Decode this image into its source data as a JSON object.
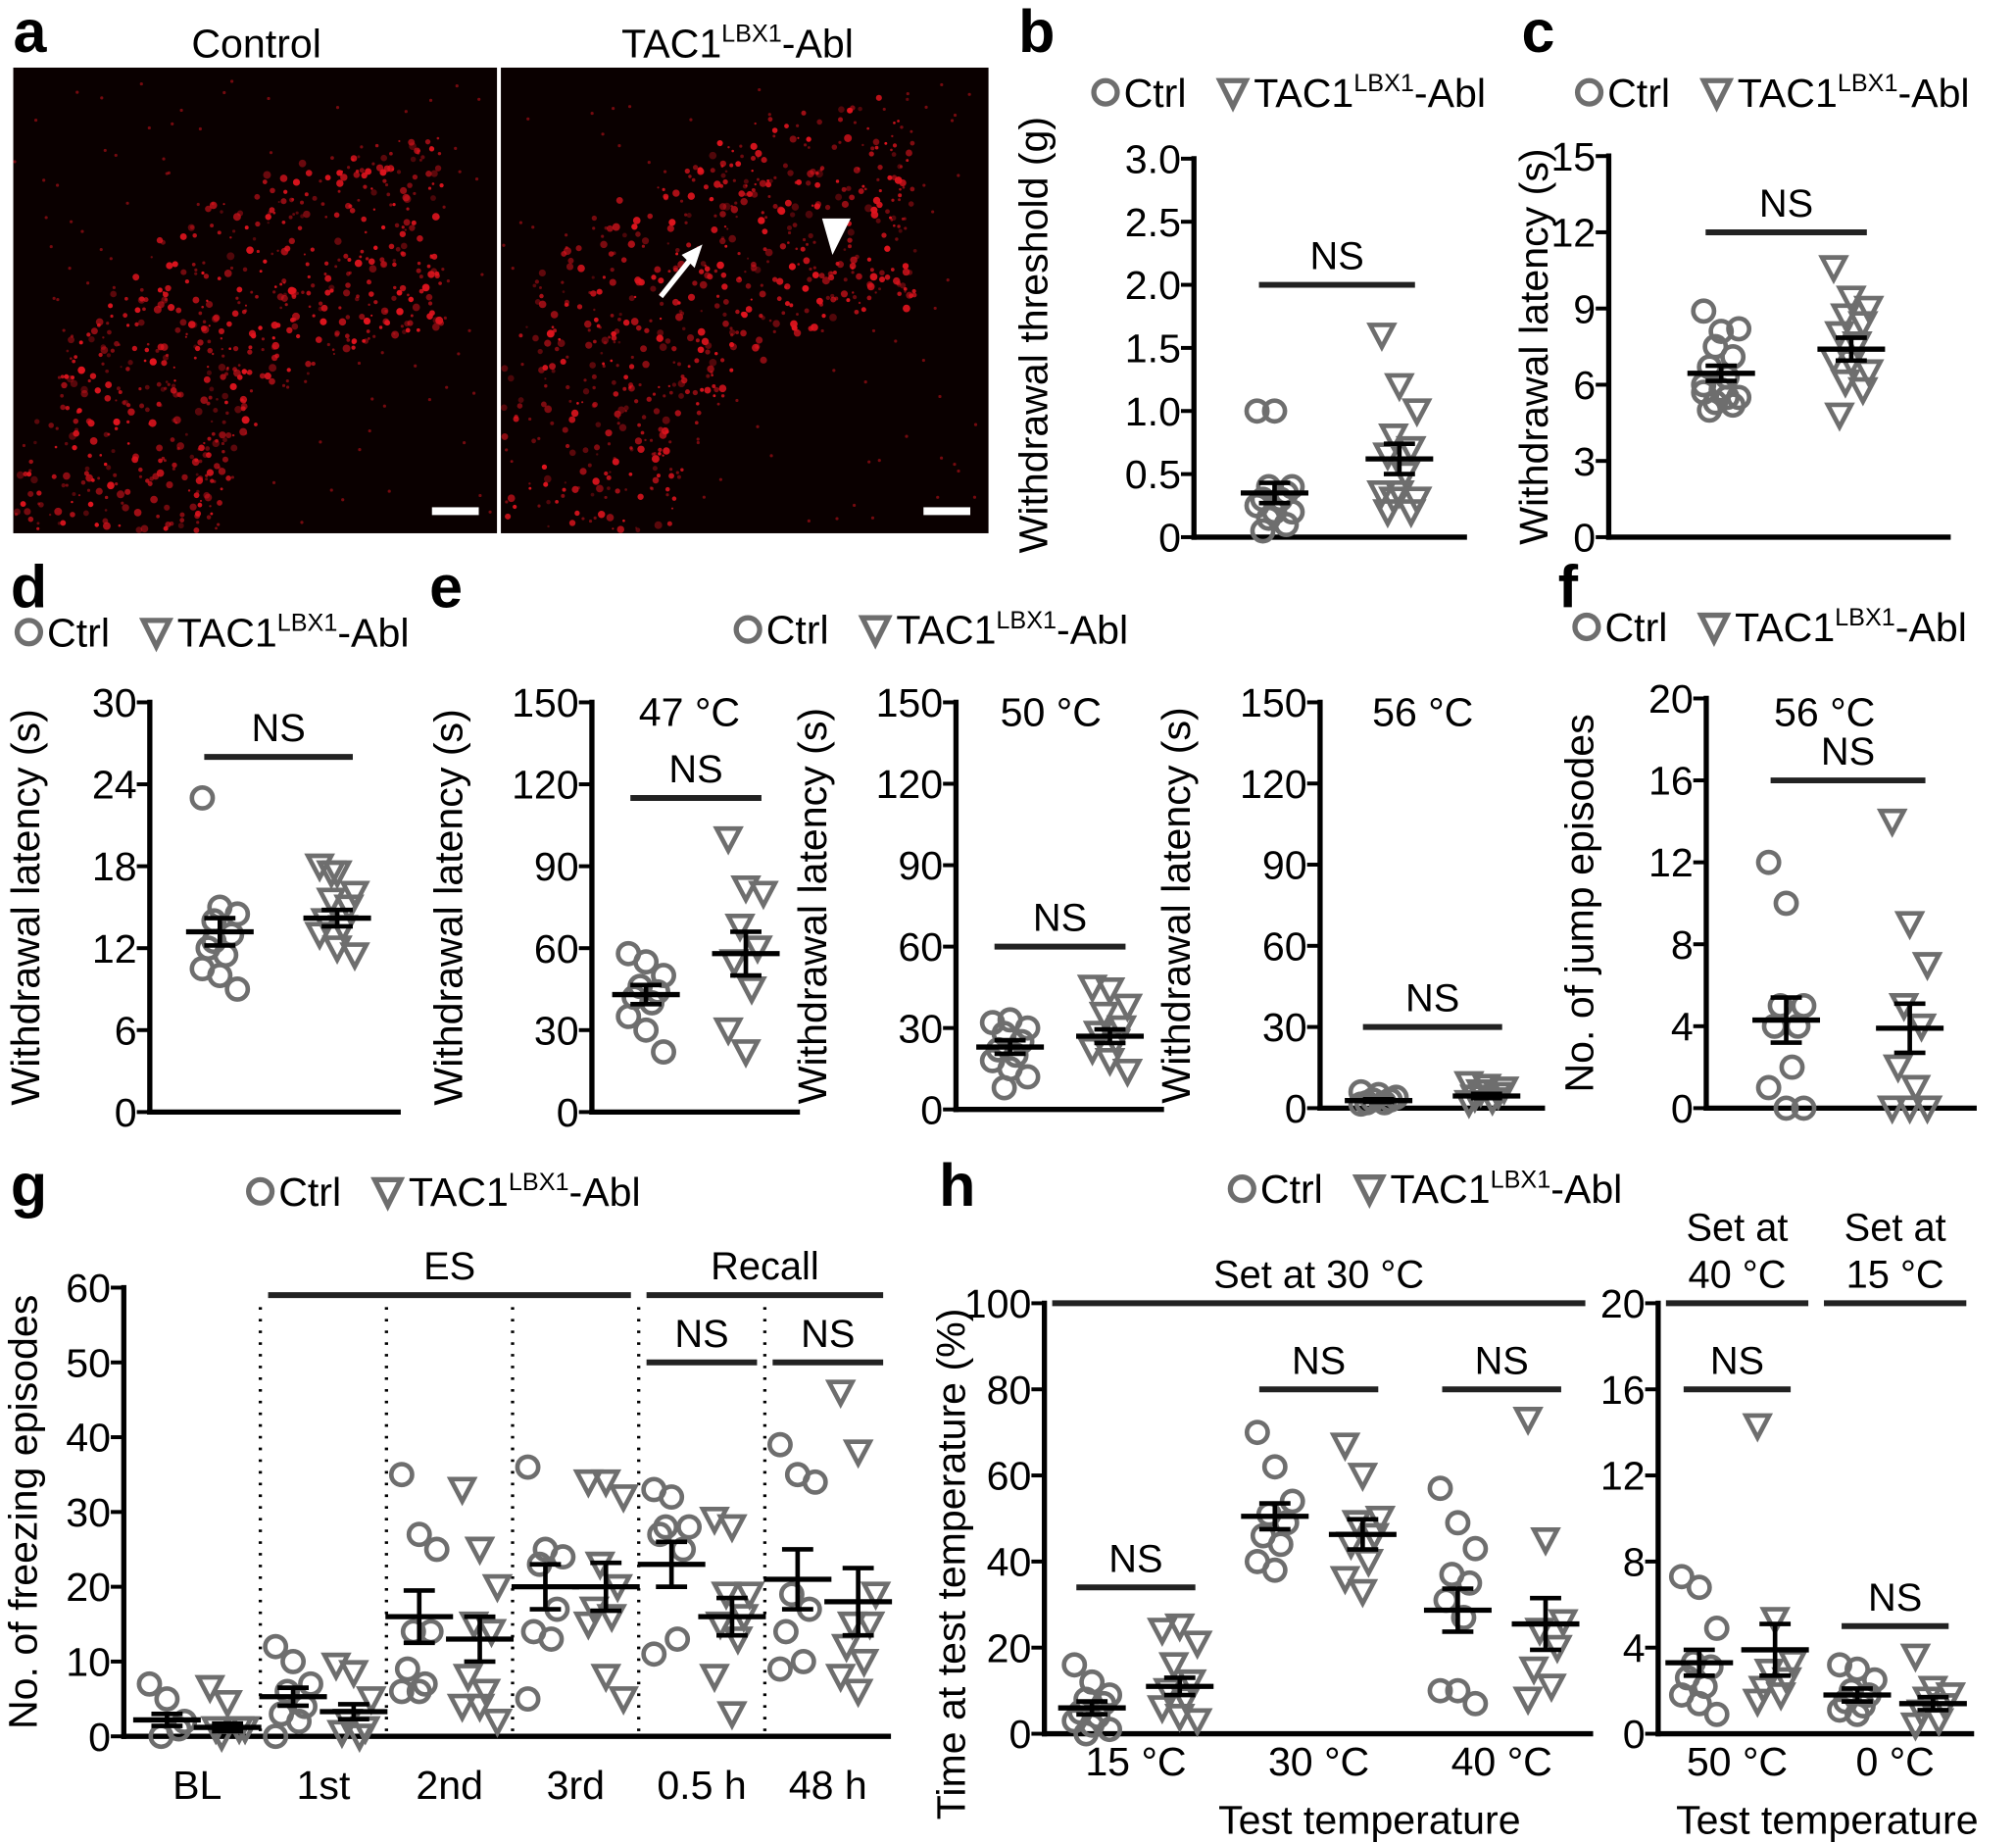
{
  "panels": [
    "a",
    "b",
    "c",
    "d",
    "e",
    "f",
    "g",
    "h"
  ],
  "legend": {
    "ctrl": "Ctrl",
    "abl_main": "TAC1",
    "abl_sup": "LBX1",
    "abl_suffix": "-Abl"
  },
  "colors": {
    "marker": "#6e6e6e",
    "mean": "#000000",
    "image_bg": "#0a0000",
    "image_signal": "#e0141e"
  },
  "image_panel": {
    "left_title": "Control",
    "right_title_main": "TAC1",
    "right_title_sup": "LBX1",
    "right_title_suffix": "-Abl",
    "markers": [
      "arrow-icon",
      "arrowhead-icon"
    ]
  },
  "chart_data": [
    {
      "id": "b",
      "type": "scatter",
      "ylabel": "Withdrawal threshold (g)",
      "ylim": [
        0,
        3
      ],
      "yticks": [
        0,
        0.5,
        1,
        1.5,
        2,
        2.5,
        3
      ],
      "ytick_labels": [
        "0",
        "0.5",
        "1.0",
        "1.5",
        "2.0",
        "2.5",
        "3.0"
      ],
      "title": "",
      "xlabel": "",
      "categories": [
        ""
      ],
      "groups": [
        {
          "ctrl": {
            "values": [
              1.0,
              1.0,
              0.4,
              0.4,
              0.35,
              0.3,
              0.3,
              0.25,
              0.2,
              0.2,
              0.15,
              0.1,
              0.05
            ],
            "mean": 0.35,
            "sem": 0.08
          },
          "abl": {
            "values": [
              1.6,
              1.2,
              1.0,
              0.8,
              0.7,
              0.65,
              0.5,
              0.35,
              0.35,
              0.3,
              0.3,
              0.2,
              0.2
            ],
            "mean": 0.62,
            "sem": 0.12
          }
        }
      ],
      "annotations": [
        {
          "label": "NS",
          "y": 2.0,
          "from": 0,
          "to": 0
        }
      ]
    },
    {
      "id": "c",
      "type": "scatter",
      "ylabel": "Withdrawal latency (s)",
      "ylim": [
        0,
        15
      ],
      "yticks": [
        0,
        3,
        6,
        9,
        12,
        15
      ],
      "ytick_labels": [
        "0",
        "3",
        "6",
        "9",
        "12",
        "15"
      ],
      "title": "",
      "xlabel": "",
      "categories": [
        ""
      ],
      "groups": [
        {
          "ctrl": {
            "values": [
              8.9,
              8.1,
              8.2,
              7.5,
              7.1,
              6.7,
              6.3,
              6.0,
              5.8,
              5.5,
              5.3,
              5.2,
              5.0,
              5.5,
              5.7
            ],
            "mean": 6.45,
            "sem": 0.3
          },
          "abl": {
            "values": [
              10.6,
              9.4,
              9.0,
              8.7,
              8.4,
              8.0,
              7.6,
              7.0,
              6.9,
              6.5,
              6.1,
              5.8,
              4.8
            ],
            "mean": 7.4,
            "sem": 0.45
          }
        }
      ],
      "annotations": [
        {
          "label": "NS",
          "y": 12,
          "from": 0,
          "to": 0
        }
      ]
    },
    {
      "id": "d",
      "type": "scatter",
      "ylabel": "Withdrawal latency (s)",
      "ylim": [
        0,
        30
      ],
      "yticks": [
        0,
        6,
        12,
        18,
        24,
        30
      ],
      "ytick_labels": [
        "0",
        "6",
        "12",
        "18",
        "24",
        "30"
      ],
      "title": "",
      "xlabel": "",
      "categories": [
        ""
      ],
      "groups": [
        {
          "ctrl": {
            "values": [
              23,
              15,
              14.5,
              14,
              13,
              12,
              11.5,
              10.5,
              10,
              9,
              12.5
            ],
            "mean": 13.2,
            "sem": 1.0
          },
          "abl": {
            "values": [
              18,
              17.5,
              16,
              15.5,
              15,
              14,
              13.5,
              13,
              12,
              11.5,
              17.5
            ],
            "mean": 14.2,
            "sem": 0.6
          }
        }
      ],
      "annotations": [
        {
          "label": "NS",
          "y": 26,
          "from": 0,
          "to": 0
        }
      ]
    },
    {
      "id": "e1",
      "type": "scatter",
      "ylabel": "Withdrawal latency (s)",
      "ylim": [
        0,
        150
      ],
      "yticks": [
        0,
        30,
        60,
        90,
        120,
        150
      ],
      "ytick_labels": [
        "0",
        "30",
        "60",
        "90",
        "120",
        "150"
      ],
      "title": "47 °C",
      "xlabel": "",
      "categories": [
        ""
      ],
      "groups": [
        {
          "ctrl": {
            "values": [
              58,
              55,
              50,
              46,
              44,
              42,
              40,
              35,
              30,
              22
            ],
            "mean": 43,
            "sem": 3.5
          },
          "abl": {
            "values": [
              100,
              82,
              80,
              68,
              60,
              55,
              45,
              30,
              22
            ],
            "mean": 58,
            "sem": 8
          }
        }
      ],
      "annotations": [
        {
          "label": "NS",
          "y": 115,
          "from": 0,
          "to": 0
        }
      ]
    },
    {
      "id": "e2",
      "type": "scatter",
      "ylabel": "Withdrawal latency (s)",
      "ylim": [
        0,
        150
      ],
      "yticks": [
        0,
        30,
        60,
        90,
        120,
        150
      ],
      "ytick_labels": [
        "0",
        "30",
        "60",
        "90",
        "120",
        "150"
      ],
      "title": "50 °C",
      "xlabel": "",
      "categories": [
        ""
      ],
      "groups": [
        {
          "ctrl": {
            "values": [
              32,
              33,
              30,
              28,
              25,
              22,
              20,
              18,
              15,
              12,
              8
            ],
            "mean": 23,
            "sem": 2.5
          },
          "abl": {
            "values": [
              45,
              44,
              38,
              35,
              30,
              28,
              25,
              22,
              18,
              14
            ],
            "mean": 27,
            "sem": 2.5
          }
        }
      ],
      "annotations": [
        {
          "label": "NS",
          "y": 60,
          "from": 0,
          "to": 0
        }
      ]
    },
    {
      "id": "e3",
      "type": "scatter",
      "ylabel": "Withdrawal latency (s)",
      "ylim": [
        0,
        150
      ],
      "yticks": [
        0,
        30,
        60,
        90,
        120,
        150
      ],
      "ytick_labels": [
        "0",
        "30",
        "60",
        "90",
        "120",
        "150"
      ],
      "title": "56 °C",
      "xlabel": "",
      "categories": [
        ""
      ],
      "groups": [
        {
          "ctrl": {
            "values": [
              6,
              5,
              4,
              3,
              3,
              2,
              2,
              1.5
            ],
            "mean": 2.8,
            "sem": 0.5
          },
          "abl": {
            "values": [
              9,
              8,
              7,
              6,
              5,
              4,
              3,
              2
            ],
            "mean": 4.5,
            "sem": 0.8
          }
        }
      ],
      "annotations": [
        {
          "label": "NS",
          "y": 30,
          "from": 0,
          "to": 0
        }
      ]
    },
    {
      "id": "f",
      "type": "scatter",
      "ylabel": "No. of jump episodes",
      "ylim": [
        0,
        20
      ],
      "yticks": [
        0,
        4,
        8,
        12,
        16,
        20
      ],
      "ytick_labels": [
        "0",
        "4",
        "8",
        "12",
        "16",
        "20"
      ],
      "title": "56 °C",
      "xlabel": "",
      "categories": [
        ""
      ],
      "groups": [
        {
          "ctrl": {
            "values": [
              12,
              10,
              5,
              5,
              4,
              4,
              2,
              1,
              0,
              0
            ],
            "mean": 4.3,
            "sem": 1.1
          },
          "abl": {
            "values": [
              14,
              9,
              7,
              5,
              4,
              2,
              1,
              0,
              0,
              0
            ],
            "mean": 3.9,
            "sem": 1.2
          }
        }
      ],
      "annotations": [
        {
          "label": "NS",
          "y": 16,
          "from": 0,
          "to": 0
        }
      ]
    },
    {
      "id": "g",
      "type": "scatter",
      "ylabel": "No. of freezing episodes",
      "ylim": [
        0,
        60
      ],
      "yticks": [
        0,
        10,
        20,
        30,
        40,
        50,
        60
      ],
      "ytick_labels": [
        "0",
        "10",
        "20",
        "30",
        "40",
        "50",
        "60"
      ],
      "title": "",
      "xlabel": "",
      "categories": [
        "BL",
        "1st",
        "2nd",
        "3rd",
        "0.5 h",
        "48 h"
      ],
      "groups": [
        {
          "ctrl": {
            "values": [
              7,
              5,
              2,
              0,
              1
            ],
            "mean": 2.2,
            "sem": 0.8
          },
          "abl": {
            "values": [
              6.5,
              4.5,
              1,
              0,
              1,
              1
            ],
            "mean": 1.2,
            "sem": 0.5
          }
        },
        {
          "ctrl": {
            "values": [
              12,
              10,
              7,
              6,
              4,
              3,
              2,
              0
            ],
            "mean": 5.3,
            "sem": 1.2
          },
          "abl": {
            "values": [
              9.5,
              8.5,
              5,
              2,
              1,
              0.5,
              0
            ],
            "mean": 3.3,
            "sem": 1.0
          }
        },
        {
          "ctrl": {
            "values": [
              35,
              27,
              25,
              14,
              14,
              9,
              7,
              6,
              6
            ],
            "mean": 16,
            "sem": 3.5
          },
          "abl": {
            "values": [
              33,
              25,
              20,
              15,
              14,
              8,
              6,
              4,
              4,
              2
            ],
            "mean": 13,
            "sem": 3
          }
        },
        {
          "ctrl": {
            "values": [
              36,
              25,
              24,
              23,
              17,
              14,
              13,
              5
            ],
            "mean": 20,
            "sem": 3
          },
          "abl": {
            "values": [
              34,
              34,
              32,
              23,
              20,
              17,
              16,
              15,
              8,
              5
            ],
            "mean": 20,
            "sem": 3.2
          }
        },
        {
          "ctrl": {
            "values": [
              33,
              32,
              28,
              28,
              25,
              27,
              13,
              11
            ],
            "mean": 23,
            "sem": 3
          },
          "abl": {
            "values": [
              29,
              28,
              19,
              19,
              16,
              15,
              13,
              8,
              3
            ],
            "mean": 16,
            "sem": 2.5
          }
        },
        {
          "ctrl": {
            "values": [
              39,
              35,
              34,
              19,
              17,
              14,
              10,
              9
            ],
            "mean": 21,
            "sem": 4
          },
          "abl": {
            "values": [
              46,
              38,
              19,
              15,
              15,
              12,
              10,
              8,
              6
            ],
            "mean": 18,
            "sem": 4.5
          }
        }
      ],
      "separators": "dotted",
      "annotations": [
        {
          "label": "ES",
          "y": 59,
          "from": 1,
          "to": 3,
          "full": true
        },
        {
          "label": "Recall",
          "y": 59,
          "from": 4,
          "to": 5,
          "full": true
        },
        {
          "label": "NS",
          "y": 50,
          "from": 4,
          "to": 4,
          "full": true
        },
        {
          "label": "NS",
          "y": 50,
          "from": 5,
          "to": 5,
          "full": true
        }
      ]
    },
    {
      "id": "h1",
      "type": "scatter",
      "ylabel": "Time at test temperature (%)",
      "ylim": [
        0,
        100
      ],
      "yticks": [
        0,
        20,
        40,
        60,
        80,
        100
      ],
      "ytick_labels": [
        "0",
        "20",
        "40",
        "60",
        "80",
        "100"
      ],
      "title": "",
      "xlabel": "Test temperature",
      "categories": [
        "15 °C",
        "30 °C",
        "40 °C"
      ],
      "groups": [
        {
          "ctrl": {
            "values": [
              16,
              12,
              9,
              8,
              7,
              5,
              4,
              3,
              2,
              1,
              0
            ],
            "mean": 6,
            "sem": 1.5
          },
          "abl": {
            "values": [
              24,
              25,
              21,
              16,
              12,
              10,
              8,
              6,
              4,
              3
            ],
            "mean": 11,
            "sem": 2
          }
        },
        {
          "ctrl": {
            "values": [
              70,
              62,
              54,
              51,
              49,
              46,
              44,
              40,
              38
            ],
            "mean": 50.5,
            "sem": 3
          },
          "abl": {
            "values": [
              67,
              60,
              50,
              49,
              46,
              44,
              40,
              36,
              33
            ],
            "mean": 46.3,
            "sem": 3.5
          }
        },
        {
          "ctrl": {
            "values": [
              57,
              49,
              43,
              37,
              35,
              31,
              27,
              10,
              10,
              7
            ],
            "mean": 28.7,
            "sem": 5
          },
          "abl": {
            "values": [
              73,
              45,
              26,
              24,
              20,
              15,
              11,
              8
            ],
            "mean": 25.5,
            "sem": 6
          }
        }
      ],
      "annotations": [
        {
          "label": "Set at 30 °C",
          "y": 100,
          "from": 0,
          "to": 2,
          "full": true
        },
        {
          "label": "NS",
          "y": 34,
          "from": 0,
          "to": 0
        },
        {
          "label": "NS",
          "y": 80,
          "from": 1,
          "to": 1
        },
        {
          "label": "NS",
          "y": 80,
          "from": 2,
          "to": 2
        }
      ]
    },
    {
      "id": "h2",
      "type": "scatter",
      "ylabel": "",
      "ylim": [
        0,
        20
      ],
      "yticks": [
        0,
        4,
        8,
        12,
        16,
        20
      ],
      "ytick_labels": [
        "0",
        "4",
        "8",
        "12",
        "16",
        "20"
      ],
      "title": "",
      "xlabel": "Test temperature",
      "categories": [
        "50 °C",
        "0 °C"
      ],
      "groups": [
        {
          "ctrl": {
            "values": [
              7.3,
              6.8,
              4.9,
              3.3,
              3.1,
              2.6,
              2.2,
              1.8,
              1.4,
              0.9
            ],
            "mean": 3.3,
            "sem": 0.6
          },
          "abl": {
            "values": [
              14.3,
              5.3,
              3.3,
              2.9,
              2.5,
              2.1,
              1.8,
              1.5
            ],
            "mean": 3.9,
            "sem": 1.2
          }
        },
        {
          "ctrl": {
            "values": [
              3.2,
              3.0,
              2.5,
              2.0,
              1.8,
              1.5,
              1.3,
              1.1,
              0.9
            ],
            "mean": 1.8,
            "sem": 0.3
          },
          "abl": {
            "values": [
              3.6,
              2.1,
              1.8,
              1.6,
              1.3,
              1.0,
              0.6,
              0.4
            ],
            "mean": 1.4,
            "sem": 0.3
          }
        }
      ],
      "annotations": [
        {
          "label": "Set at",
          "label2": "40 °C",
          "y": 20,
          "from": 0,
          "to": 0,
          "full": true
        },
        {
          "label": "Set at",
          "label2": "15 °C",
          "y": 20,
          "from": 1,
          "to": 1,
          "full": true
        },
        {
          "label": "NS",
          "y": 16,
          "from": 0,
          "to": 0
        },
        {
          "label": "NS",
          "y": 5,
          "from": 1,
          "to": 1
        }
      ]
    }
  ]
}
